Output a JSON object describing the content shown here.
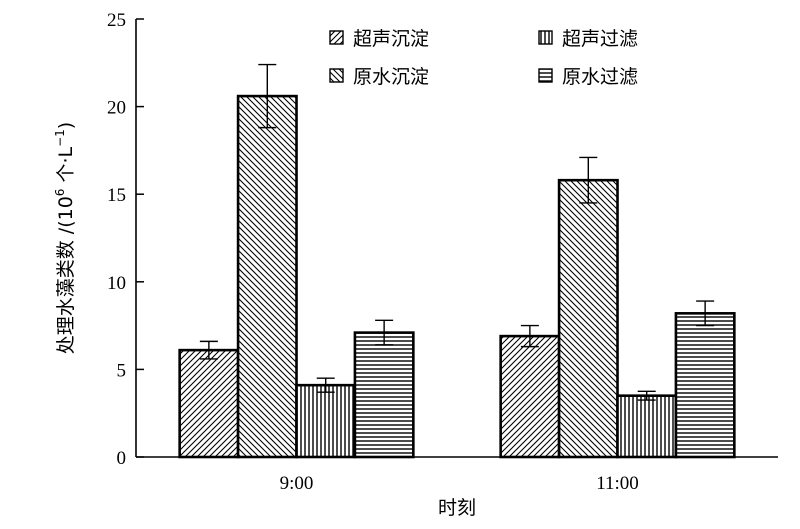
{
  "chart_data": {
    "type": "bar",
    "title": "",
    "xlabel": "时刻",
    "ylabel": "处理水藻类数 /(10⁶ 个·L⁻¹)",
    "ylabel_main": "处理水藻类数 /(10",
    "ylabel_exp": "6",
    "ylabel_unit": " 个·L",
    "ylabel_unit_exp": "−1",
    "ylabel_close": ")",
    "ylim": [
      0,
      25
    ],
    "yticks": [
      0,
      5,
      10,
      15,
      20,
      25
    ],
    "grid": false,
    "legend_position": "top-right",
    "categories": [
      "9:00",
      "11:00"
    ],
    "series": [
      {
        "name": "超声沉淀",
        "pattern": "diag-fwd",
        "values": [
          6.1,
          6.9
        ],
        "errors": [
          0.5,
          0.6
        ]
      },
      {
        "name": "原水沉淀",
        "pattern": "diag-back",
        "values": [
          20.6,
          15.8
        ],
        "errors": [
          1.8,
          1.3
        ]
      },
      {
        "name": "超声过滤",
        "pattern": "vertical",
        "values": [
          4.1,
          3.5
        ],
        "errors": [
          0.4,
          0.25
        ]
      },
      {
        "name": "原水过滤",
        "pattern": "horizontal",
        "values": [
          7.1,
          8.2
        ],
        "errors": [
          0.7,
          0.7
        ]
      }
    ]
  }
}
